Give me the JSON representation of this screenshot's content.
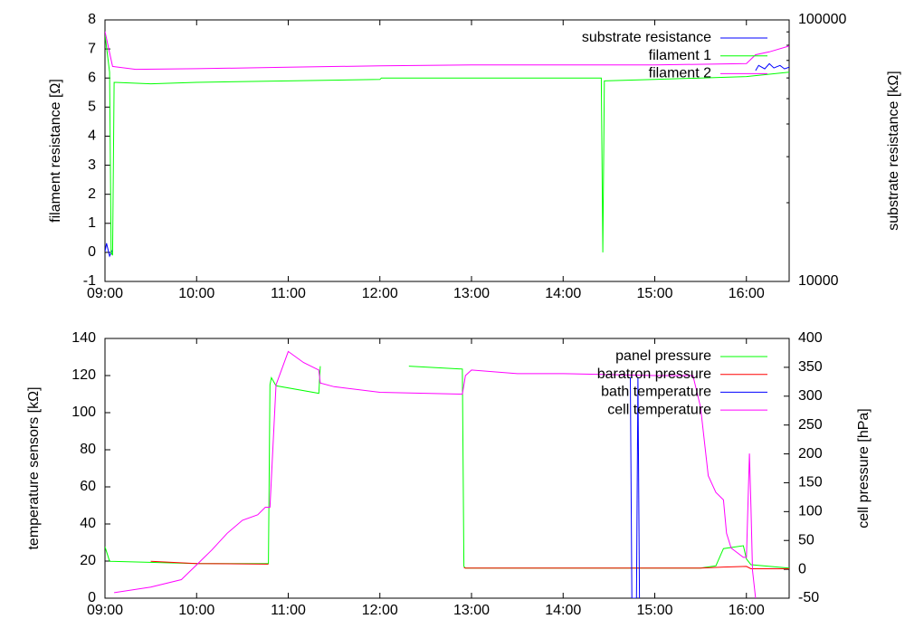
{
  "chart_data": [
    {
      "type": "line",
      "ylabel": "filament resistance [Ω]",
      "y2label": "substrate resistance [kΩ]",
      "xlim": [
        540,
        988
      ],
      "xticks": [
        {
          "value": 540,
          "label": "09:00"
        },
        {
          "value": 600,
          "label": "10:00"
        },
        {
          "value": 660,
          "label": "11:00"
        },
        {
          "value": 720,
          "label": "12:00"
        },
        {
          "value": 780,
          "label": "13:00"
        },
        {
          "value": 840,
          "label": "14:00"
        },
        {
          "value": 900,
          "label": "15:00"
        },
        {
          "value": 960,
          "label": "16:00"
        }
      ],
      "ylim": [
        -1,
        8
      ],
      "yticks": [
        -1,
        0,
        1,
        2,
        3,
        4,
        5,
        6,
        7,
        8
      ],
      "y2lim": [
        10000,
        100000
      ],
      "y2ticks": [
        10000,
        100000
      ],
      "y2log": true,
      "legend": "upper right",
      "series": [
        {
          "name": "substrate resistance",
          "color": "#0000ff",
          "axis": "y2",
          "x": [
            540,
            541,
            543,
            545,
            546,
            966,
            968,
            972,
            975,
            978,
            982,
            985,
            988
          ],
          "values": [
            13000,
            14000,
            12500,
            13200,
            null,
            64000,
            67000,
            65000,
            68000,
            65500,
            67000,
            65000,
            66000
          ]
        },
        {
          "name": "filament 1",
          "color": "#00ff00",
          "x": [
            540,
            543,
            544,
            545,
            546,
            570,
            600,
            660,
            720,
            721,
            780,
            865,
            866,
            867,
            900,
            930,
            960,
            988
          ],
          "values": [
            7.5,
            6.2,
            0,
            -0.1,
            5.85,
            5.8,
            5.85,
            5.9,
            5.95,
            6.0,
            6.0,
            6.0,
            0,
            5.9,
            5.95,
            6.0,
            6.05,
            6.2
          ]
        },
        {
          "name": "filament 2",
          "color": "#ff00ff",
          "x": [
            540,
            545,
            560,
            600,
            660,
            720,
            780,
            900,
            960,
            966,
            975,
            988
          ],
          "values": [
            7.6,
            6.4,
            6.3,
            6.32,
            6.37,
            6.42,
            6.45,
            6.45,
            6.5,
            6.8,
            6.9,
            7.1
          ]
        }
      ]
    },
    {
      "type": "line",
      "ylabel": "temperature sensors [kΩ]",
      "y2label": "cell pressure [hPa]",
      "xlim": [
        540,
        988
      ],
      "xticks": [
        {
          "value": 540,
          "label": "09:00"
        },
        {
          "value": 600,
          "label": "10:00"
        },
        {
          "value": 660,
          "label": "11:00"
        },
        {
          "value": 720,
          "label": "12:00"
        },
        {
          "value": 780,
          "label": "13:00"
        },
        {
          "value": 840,
          "label": "14:00"
        },
        {
          "value": 900,
          "label": "15:00"
        },
        {
          "value": 960,
          "label": "16:00"
        }
      ],
      "ylim": [
        0,
        140
      ],
      "yticks": [
        0,
        20,
        40,
        60,
        80,
        100,
        120,
        140
      ],
      "y2lim": [
        -50,
        400
      ],
      "y2ticks": [
        -50,
        0,
        50,
        100,
        150,
        200,
        250,
        300,
        350,
        400
      ],
      "legend": "upper right",
      "series": [
        {
          "name": "panel pressure",
          "color": "#00ff00",
          "axis": "y2",
          "x": [
            540,
            543,
            600,
            647,
            648,
            649,
            652,
            680,
            681,
            682,
            739,
            774,
            775,
            776,
            930,
            940,
            945,
            958,
            960,
            963,
            988
          ],
          "values": [
            39,
            14,
            10,
            10,
            320,
            332,
            318,
            305,
            352,
            null,
            352,
            347,
            5,
            2,
            2,
            6,
            36,
            41,
            18,
            8,
            2
          ]
        },
        {
          "name": "baratron pressure",
          "color": "#ff0000",
          "axis": "y2",
          "x": [
            570,
            600,
            647,
            648,
            775,
            776,
            930,
            945,
            960,
            963,
            988
          ],
          "values": [
            14,
            10,
            9,
            null,
            3,
            2,
            2,
            4,
            5,
            1,
            1
          ]
        },
        {
          "name": "bath temperature",
          "color": "#0000ff",
          "x": [
            884,
            885,
            888,
            889,
            890
          ],
          "values": [
            119,
            0,
            0,
            119,
            0
          ]
        },
        {
          "name": "cell temperature",
          "color": "#ff00ff",
          "x": [
            546,
            570,
            590,
            600,
            610,
            620,
            630,
            640,
            645,
            648,
            652,
            660,
            670,
            680,
            681,
            690,
            720,
            774,
            776,
            780,
            810,
            840,
            900,
            925,
            930,
            935,
            940,
            945,
            947,
            950,
            958,
            960,
            962,
            963,
            964,
            966
          ],
          "values": [
            3,
            6,
            10,
            18,
            26,
            35,
            42,
            45,
            49,
            49,
            115,
            133,
            127,
            123,
            116,
            114,
            111,
            110,
            120,
            123,
            121,
            121,
            120,
            120,
            103,
            66,
            57,
            53,
            35,
            27,
            22,
            22,
            78,
            49,
            15,
            0
          ]
        }
      ]
    }
  ]
}
